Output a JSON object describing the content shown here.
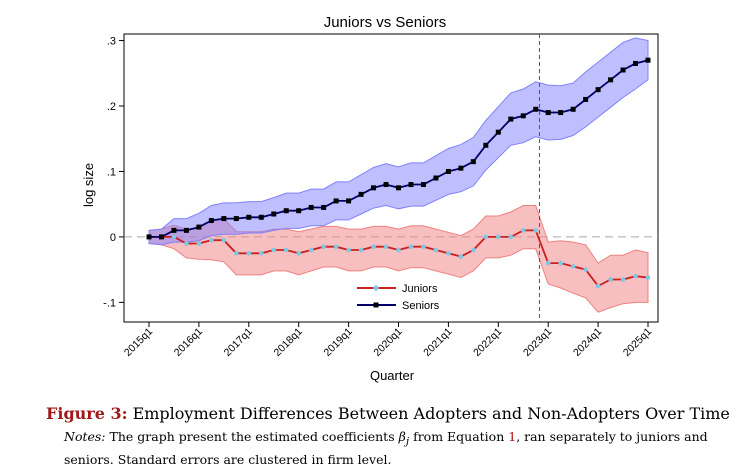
{
  "chart_data": {
    "type": "line",
    "title": "Juniors vs Seniors",
    "xlabel": "Quarter",
    "ylabel": "log size",
    "ylim": [
      -0.13,
      0.31
    ],
    "y_ticks": [
      {
        "v": -0.1,
        "label": "-.1"
      },
      {
        "v": 0,
        "label": "0"
      },
      {
        "v": 0.1,
        "label": ".1"
      },
      {
        "v": 0.2,
        "label": ".2"
      },
      {
        "v": 0.3,
        "label": ".3"
      }
    ],
    "x_ticks": [
      {
        "i": 0,
        "label": "2015q1"
      },
      {
        "i": 4,
        "label": "2016q1"
      },
      {
        "i": 8,
        "label": "2017q1"
      },
      {
        "i": 12,
        "label": "2018q1"
      },
      {
        "i": 16,
        "label": "2019q1"
      },
      {
        "i": 20,
        "label": "2020q1"
      },
      {
        "i": 24,
        "label": "2021q1"
      },
      {
        "i": 28,
        "label": "2022q1"
      },
      {
        "i": 32,
        "label": "2023q1"
      },
      {
        "i": 36,
        "label": "2024q1"
      },
      {
        "i": 40,
        "label": "2025q1"
      }
    ],
    "reference_x_index": 31.3,
    "legend_position": "lower-center",
    "series": [
      {
        "name": "Juniors",
        "line_color": "#cc1f1f",
        "marker_color": "#7ec8e3",
        "band_color": "#f08080",
        "values": [
          0.0,
          0.0,
          0.0,
          -0.01,
          -0.01,
          -0.005,
          -0.005,
          -0.025,
          -0.025,
          -0.025,
          -0.02,
          -0.02,
          -0.025,
          -0.02,
          -0.015,
          -0.015,
          -0.02,
          -0.02,
          -0.015,
          -0.015,
          -0.02,
          -0.015,
          -0.015,
          -0.02,
          -0.025,
          -0.03,
          -0.02,
          0.0,
          0.0,
          0.0,
          0.01,
          0.01,
          -0.04,
          -0.04,
          -0.045,
          -0.05,
          -0.075,
          -0.065,
          -0.065,
          -0.06,
          -0.062
        ],
        "ci_lower": [
          -0.01,
          -0.012,
          -0.018,
          -0.032,
          -0.034,
          -0.035,
          -0.038,
          -0.058,
          -0.058,
          -0.058,
          -0.052,
          -0.052,
          -0.058,
          -0.052,
          -0.046,
          -0.046,
          -0.052,
          -0.052,
          -0.046,
          -0.046,
          -0.052,
          -0.047,
          -0.047,
          -0.052,
          -0.057,
          -0.062,
          -0.052,
          -0.032,
          -0.032,
          -0.028,
          -0.018,
          -0.018,
          -0.072,
          -0.078,
          -0.086,
          -0.093,
          -0.115,
          -0.108,
          -0.102,
          -0.1,
          -0.1
        ],
        "ci_upper": [
          0.01,
          0.012,
          0.018,
          0.012,
          0.014,
          0.025,
          0.028,
          0.008,
          0.008,
          0.008,
          0.012,
          0.012,
          0.008,
          0.012,
          0.016,
          0.016,
          0.012,
          0.012,
          0.016,
          0.016,
          0.012,
          0.017,
          0.017,
          0.012,
          0.007,
          0.002,
          0.012,
          0.032,
          0.032,
          0.038,
          0.048,
          0.048,
          -0.008,
          -0.006,
          -0.008,
          -0.012,
          -0.04,
          -0.028,
          -0.028,
          -0.02,
          -0.024
        ]
      },
      {
        "name": "Seniors",
        "line_color": "#000066",
        "marker_color": "#000000",
        "band_color": "#8080ff",
        "values": [
          0.0,
          0.0,
          0.01,
          0.01,
          0.015,
          0.025,
          0.028,
          0.028,
          0.03,
          0.03,
          0.035,
          0.04,
          0.04,
          0.045,
          0.045,
          0.055,
          0.055,
          0.065,
          0.075,
          0.08,
          0.075,
          0.08,
          0.08,
          0.09,
          0.1,
          0.105,
          0.115,
          0.14,
          0.16,
          0.18,
          0.185,
          0.195,
          0.19,
          0.19,
          0.195,
          0.21,
          0.225,
          0.24,
          0.255,
          0.265,
          0.27
        ],
        "ci_lower": [
          -0.01,
          -0.012,
          -0.008,
          -0.008,
          -0.006,
          0.002,
          0.004,
          0.004,
          0.006,
          0.006,
          0.01,
          0.013,
          0.013,
          0.017,
          0.017,
          0.026,
          0.026,
          0.035,
          0.044,
          0.048,
          0.043,
          0.047,
          0.047,
          0.056,
          0.065,
          0.069,
          0.078,
          0.102,
          0.121,
          0.14,
          0.144,
          0.153,
          0.148,
          0.149,
          0.155,
          0.168,
          0.183,
          0.198,
          0.213,
          0.226,
          0.24
        ],
        "ci_upper": [
          0.01,
          0.012,
          0.028,
          0.028,
          0.036,
          0.048,
          0.052,
          0.052,
          0.054,
          0.054,
          0.06,
          0.067,
          0.067,
          0.073,
          0.073,
          0.084,
          0.084,
          0.095,
          0.106,
          0.112,
          0.107,
          0.113,
          0.113,
          0.124,
          0.135,
          0.141,
          0.152,
          0.178,
          0.199,
          0.22,
          0.226,
          0.237,
          0.232,
          0.231,
          0.235,
          0.252,
          0.267,
          0.282,
          0.297,
          0.304,
          0.3
        ]
      }
    ]
  },
  "caption": {
    "figure_label": "Figure 3:",
    "figure_title": "Employment Differences Between Adopters and Non-Adopters Over Time",
    "notes_label": "Notes:",
    "notes_text_1": "The graph present the estimated coefficients",
    "beta": "β",
    "beta_sub": "j",
    "notes_text_2": "from Equation",
    "equation_ref": "1",
    "notes_text_3": ", ran separately to juniors and seniors. Standard errors are clustered in firm level."
  }
}
